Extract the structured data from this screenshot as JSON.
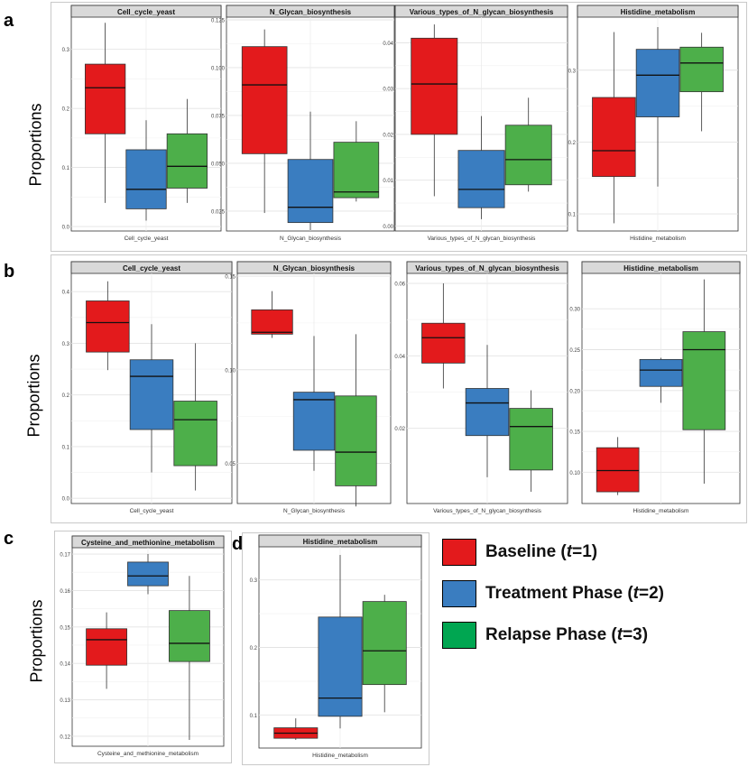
{
  "panel_labels": {
    "a": "a",
    "b": "b",
    "c": "c",
    "d": "d"
  },
  "ylabel": "Proportions",
  "legend": [
    {
      "label": "Baseline (t=1)",
      "color": "#e31a1c"
    },
    {
      "label": "Treatment Phase (t=2)",
      "color": "#3a7dc0"
    },
    {
      "label": "Relapse Phase (t=3)",
      "color": "#4daf4a"
    }
  ],
  "chart_data": [
    {
      "type": "box",
      "panel": "a",
      "title": "Cell_cycle_yeast",
      "xlabel": "Cell_cycle_yeast",
      "ylim": [
        -0.003,
        0.35
      ],
      "yticks": [
        0.0,
        0.1,
        0.2,
        0.3
      ],
      "ytick_labels": [
        "0.0",
        "0.1",
        "0.2",
        "0.3"
      ],
      "boxes": [
        {
          "min": 0.04,
          "q1": 0.157,
          "median": 0.235,
          "q3": 0.275,
          "max": 0.345
        },
        {
          "min": 0.01,
          "q1": 0.03,
          "median": 0.063,
          "q3": 0.13,
          "max": 0.18
        },
        {
          "min": 0.04,
          "q1": 0.065,
          "median": 0.102,
          "q3": 0.157,
          "max": 0.216
        }
      ]
    },
    {
      "type": "box",
      "panel": "a",
      "title": "N_Glycan_biosynthesis",
      "xlabel": "N_Glycan_biosynthesis",
      "ylim": [
        0.016,
        0.125
      ],
      "yticks": [
        0.025,
        0.05,
        0.075,
        0.1,
        0.125
      ],
      "ytick_labels": [
        "0.025",
        "0.050",
        "0.075",
        "0.100",
        "0.125"
      ],
      "boxes": [
        {
          "min": 0.024,
          "q1": 0.055,
          "median": 0.091,
          "q3": 0.111,
          "max": 0.12
        },
        {
          "min": 0.015,
          "q1": 0.019,
          "median": 0.027,
          "q3": 0.052,
          "max": 0.077
        },
        {
          "min": 0.03,
          "q1": 0.032,
          "median": 0.035,
          "q3": 0.061,
          "max": 0.072
        }
      ]
    },
    {
      "type": "box",
      "panel": "a",
      "title": "Various_types_of_N_glycan_biosynthesis",
      "xlabel": "Various_types_of_N_glycan_biosynthesis",
      "ylim": [
        -0.0005,
        0.045
      ],
      "yticks": [
        0.0,
        0.01,
        0.02,
        0.03,
        0.04
      ],
      "ytick_labels": [
        "0.00",
        "0.01",
        "0.02",
        "0.03",
        "0.04"
      ],
      "boxes": [
        {
          "min": 0.0065,
          "q1": 0.02,
          "median": 0.031,
          "q3": 0.041,
          "max": 0.044
        },
        {
          "min": 0.0015,
          "q1": 0.004,
          "median": 0.008,
          "q3": 0.0165,
          "max": 0.024
        },
        {
          "min": 0.0075,
          "q1": 0.009,
          "median": 0.0145,
          "q3": 0.022,
          "max": 0.028
        }
      ]
    },
    {
      "type": "box",
      "panel": "a",
      "title": "Histidine_metabolism",
      "xlabel": "Histidine_metabolism",
      "ylim": [
        0.08,
        0.37
      ],
      "yticks": [
        0.1,
        0.2,
        0.3
      ],
      "ytick_labels": [
        "0.1",
        "0.2",
        "0.3"
      ],
      "boxes": [
        {
          "min": 0.087,
          "q1": 0.152,
          "median": 0.188,
          "q3": 0.262,
          "max": 0.353
        },
        {
          "min": 0.138,
          "q1": 0.235,
          "median": 0.293,
          "q3": 0.329,
          "max": 0.36
        },
        {
          "min": 0.215,
          "q1": 0.27,
          "median": 0.31,
          "q3": 0.332,
          "max": 0.352
        }
      ]
    },
    {
      "type": "box",
      "panel": "b",
      "title": "Cell_cycle_yeast",
      "xlabel": "Cell_cycle_yeast",
      "ylim": [
        -0.005,
        0.43
      ],
      "yticks": [
        0.0,
        0.1,
        0.2,
        0.3,
        0.4
      ],
      "ytick_labels": [
        "0.0",
        "0.1",
        "0.2",
        "0.3",
        "0.4"
      ],
      "boxes": [
        {
          "min": 0.248,
          "q1": 0.283,
          "median": 0.34,
          "q3": 0.382,
          "max": 0.42
        },
        {
          "min": 0.05,
          "q1": 0.133,
          "median": 0.236,
          "q3": 0.268,
          "max": 0.337
        },
        {
          "min": 0.015,
          "q1": 0.063,
          "median": 0.152,
          "q3": 0.188,
          "max": 0.3
        }
      ]
    },
    {
      "type": "box",
      "panel": "b",
      "title": "N_Glycan_biosynthesis",
      "xlabel": "N_Glycan_biosynthesis",
      "ylim": [
        0.03,
        0.15
      ],
      "yticks": [
        0.05,
        0.1,
        0.15
      ],
      "ytick_labels": [
        "0.05",
        "0.10",
        "0.15"
      ],
      "boxes": [
        {
          "min": 0.117,
          "q1": 0.119,
          "median": 0.12,
          "q3": 0.132,
          "max": 0.142
        },
        {
          "min": 0.046,
          "q1": 0.057,
          "median": 0.084,
          "q3": 0.088,
          "max": 0.118
        },
        {
          "min": 0.027,
          "q1": 0.038,
          "median": 0.056,
          "q3": 0.086,
          "max": 0.119
        }
      ]
    },
    {
      "type": "box",
      "panel": "b",
      "title": "Various_types_of_N_glycan_biosynthesis",
      "xlabel": "Various_types_of_N_glycan_biosynthesis",
      "ylim": [
        0.0,
        0.062
      ],
      "yticks": [
        0.02,
        0.04,
        0.06
      ],
      "ytick_labels": [
        "0.02",
        "0.04",
        "0.06"
      ],
      "boxes": [
        {
          "min": 0.031,
          "q1": 0.038,
          "median": 0.045,
          "q3": 0.049,
          "max": 0.06
        },
        {
          "min": 0.0065,
          "q1": 0.018,
          "median": 0.027,
          "q3": 0.031,
          "max": 0.043
        },
        {
          "min": 0.0025,
          "q1": 0.0085,
          "median": 0.0205,
          "q3": 0.0255,
          "max": 0.0305
        }
      ]
    },
    {
      "type": "box",
      "panel": "b",
      "title": "Histidine_metabolism",
      "xlabel": "Histidine_metabolism",
      "ylim": [
        0.065,
        0.34
      ],
      "yticks": [
        0.1,
        0.15,
        0.2,
        0.25,
        0.3
      ],
      "ytick_labels": [
        "0.10",
        "0.15",
        "0.20",
        "0.25",
        "0.30"
      ],
      "boxes": [
        {
          "min": 0.072,
          "q1": 0.076,
          "median": 0.102,
          "q3": 0.13,
          "max": 0.143
        },
        {
          "min": 0.185,
          "q1": 0.205,
          "median": 0.225,
          "q3": 0.238,
          "max": 0.24
        },
        {
          "min": 0.086,
          "q1": 0.152,
          "median": 0.25,
          "q3": 0.272,
          "max": 0.336
        }
      ]
    },
    {
      "type": "box",
      "panel": "c",
      "title": "Cysteine_and_methionine_metabolism",
      "xlabel": "Cysteine_and_methionine_metabolism",
      "ylim": [
        0.118,
        0.171
      ],
      "yticks": [
        0.12,
        0.13,
        0.14,
        0.15,
        0.16,
        0.17
      ],
      "ytick_labels": [
        "0.12",
        "0.13",
        "0.14",
        "0.15",
        "0.16",
        "0.17"
      ],
      "boxes": [
        {
          "min": 0.133,
          "q1": 0.1395,
          "median": 0.1465,
          "q3": 0.1495,
          "max": 0.154
        },
        {
          "min": 0.159,
          "q1": 0.1613,
          "median": 0.164,
          "q3": 0.1678,
          "max": 0.17
        },
        {
          "min": 0.119,
          "q1": 0.1405,
          "median": 0.1455,
          "q3": 0.1545,
          "max": 0.164
        }
      ]
    },
    {
      "type": "box",
      "panel": "d",
      "title": "Histidine_metabolism",
      "xlabel": "Histidine_metabolism",
      "ylim": [
        0.055,
        0.345
      ],
      "yticks": [
        0.1,
        0.2,
        0.3
      ],
      "ytick_labels": [
        "0.1",
        "0.2",
        "0.3"
      ],
      "boxes": [
        {
          "min": 0.063,
          "q1": 0.0655,
          "median": 0.073,
          "q3": 0.081,
          "max": 0.095
        },
        {
          "min": 0.08,
          "q1": 0.098,
          "median": 0.125,
          "q3": 0.245,
          "max": 0.337
        },
        {
          "min": 0.104,
          "q1": 0.145,
          "median": 0.195,
          "q3": 0.268,
          "max": 0.278
        }
      ]
    }
  ]
}
